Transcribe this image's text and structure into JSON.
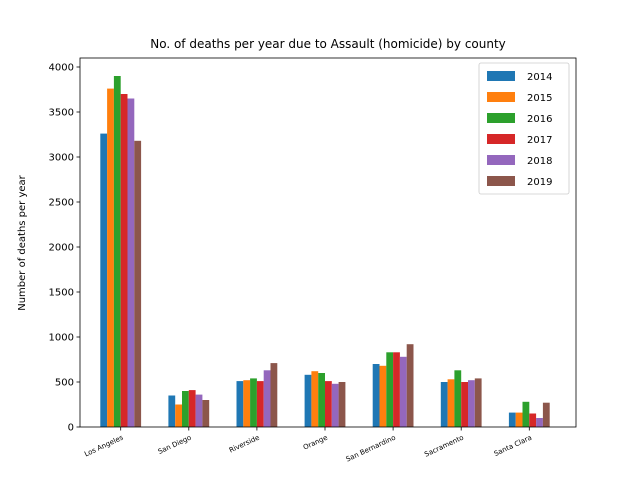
{
  "chart_data": {
    "type": "bar",
    "title": "No. of deaths per year due to Assault (homicide) by county",
    "xlabel": "",
    "ylabel": "Number of deaths per year",
    "ylim": [
      0,
      4100
    ],
    "yticks": [
      0,
      500,
      1000,
      1500,
      2000,
      2500,
      3000,
      3500,
      4000
    ],
    "grid": false,
    "legend_position": "top-right",
    "categories": [
      "Los Angeles",
      "San Diego",
      "Riverside",
      "Orange",
      "San Bernardino",
      "Sacramento",
      "Santa Clara"
    ],
    "series": [
      {
        "name": "2014",
        "color": "#1f77b4",
        "values": [
          3260,
          350,
          510,
          580,
          700,
          500,
          160
        ]
      },
      {
        "name": "2015",
        "color": "#ff7f0e",
        "values": [
          3760,
          250,
          520,
          620,
          680,
          530,
          160
        ]
      },
      {
        "name": "2016",
        "color": "#2ca02c",
        "values": [
          3900,
          400,
          540,
          600,
          830,
          630,
          280
        ]
      },
      {
        "name": "2017",
        "color": "#d62728",
        "values": [
          3700,
          410,
          510,
          510,
          830,
          500,
          150
        ]
      },
      {
        "name": "2018",
        "color": "#9467bd",
        "values": [
          3650,
          360,
          630,
          480,
          780,
          520,
          100
        ]
      },
      {
        "name": "2019",
        "color": "#8c564b",
        "values": [
          3180,
          300,
          710,
          500,
          920,
          540,
          270
        ]
      }
    ]
  }
}
